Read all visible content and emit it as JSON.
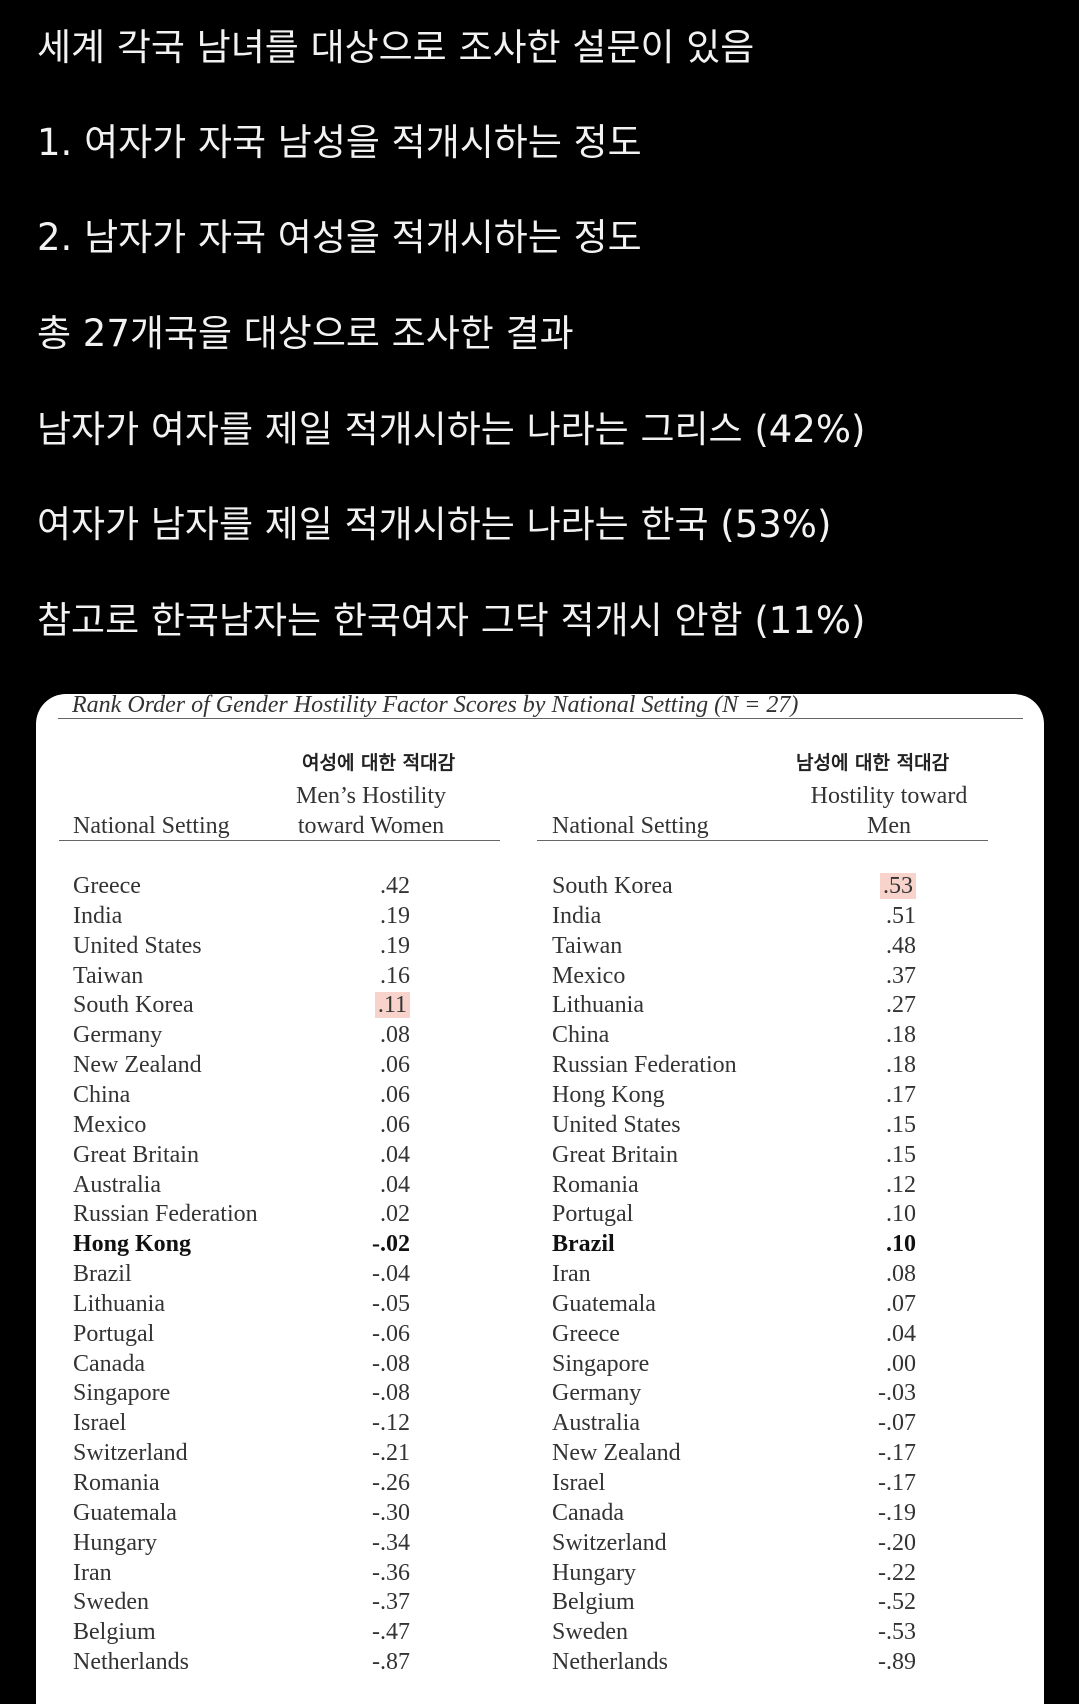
{
  "intro_lines": [
    "세계 각국 남녀를 대상으로 조사한 설문이 있음",
    "1. 여자가 자국 남성을 적개시하는 정도",
    "2. 남자가 자국 여성을 적개시하는 정도",
    "총 27개국을 대상으로 조사한 결과",
    "남자가 여자를 제일 적개시하는 나라는 그리스 (42%)",
    "여자가 남자를 제일 적개시하는 나라는 한국 (53%)",
    "참고로 한국남자는 한국여자 그닥 적개시 안함 (11%)"
  ],
  "table": {
    "title": "Rank Order of Gender Hostility Factor Scores by National Setting (N = 27)",
    "left": {
      "korean_label": "여성에 대한 적대감",
      "col_country": "National Setting",
      "col_value_line1": "Men’s Hostility",
      "col_value_line2": "toward Women",
      "rows": [
        [
          "Greece",
          ".42"
        ],
        [
          "India",
          ".19"
        ],
        [
          "United States",
          ".19"
        ],
        [
          "Taiwan",
          ".16"
        ],
        [
          "South Korea",
          ".11"
        ],
        [
          "Germany",
          ".08"
        ],
        [
          "New Zealand",
          ".06"
        ],
        [
          "China",
          ".06"
        ],
        [
          "Mexico",
          ".06"
        ],
        [
          "Great Britain",
          ".04"
        ],
        [
          "Australia",
          ".04"
        ],
        [
          "Russian Federation",
          ".02"
        ],
        [
          "Hong Kong",
          "-.02"
        ],
        [
          "Brazil",
          "-.04"
        ],
        [
          "Lithuania",
          "-.05"
        ],
        [
          "Portugal",
          "-.06"
        ],
        [
          "Canada",
          "-.08"
        ],
        [
          "Singapore",
          "-.08"
        ],
        [
          "Israel",
          "-.12"
        ],
        [
          "Switzerland",
          "-.21"
        ],
        [
          "Romania",
          "-.26"
        ],
        [
          "Guatemala",
          "-.30"
        ],
        [
          "Hungary",
          "-.34"
        ],
        [
          "Iran",
          "-.36"
        ],
        [
          "Sweden",
          "-.37"
        ],
        [
          "Belgium",
          "-.47"
        ],
        [
          "Netherlands",
          "-.87"
        ]
      ],
      "bold_row": "Hong Kong",
      "highlight_row": "South Korea"
    },
    "right": {
      "korean_label": "남성에 대한 적대감",
      "col_country": "National Setting",
      "col_value_line1": "Hostility toward",
      "col_value_line2": "Men",
      "rows": [
        [
          "South Korea",
          ".53"
        ],
        [
          "India",
          ".51"
        ],
        [
          "Taiwan",
          ".48"
        ],
        [
          "Mexico",
          ".37"
        ],
        [
          "Lithuania",
          ".27"
        ],
        [
          "China",
          ".18"
        ],
        [
          "Russian Federation",
          ".18"
        ],
        [
          "Hong Kong",
          ".17"
        ],
        [
          "United States",
          ".15"
        ],
        [
          "Great Britain",
          ".15"
        ],
        [
          "Romania",
          ".12"
        ],
        [
          "Portugal",
          ".10"
        ],
        [
          "Brazil",
          ".10"
        ],
        [
          "Iran",
          ".08"
        ],
        [
          "Guatemala",
          ".07"
        ],
        [
          "Greece",
          ".04"
        ],
        [
          "Singapore",
          ".00"
        ],
        [
          "Germany",
          "-.03"
        ],
        [
          "Australia",
          "-.07"
        ],
        [
          "New Zealand",
          "-.17"
        ],
        [
          "Israel",
          "-.17"
        ],
        [
          "Canada",
          "-.19"
        ],
        [
          "Switzerland",
          "-.20"
        ],
        [
          "Hungary",
          "-.22"
        ],
        [
          "Belgium",
          "-.52"
        ],
        [
          "Sweden",
          "-.53"
        ],
        [
          "Netherlands",
          "-.89"
        ]
      ],
      "bold_row": "Brazil",
      "highlight_row": "South Korea"
    },
    "highlight_color": "#f8d3cb"
  }
}
